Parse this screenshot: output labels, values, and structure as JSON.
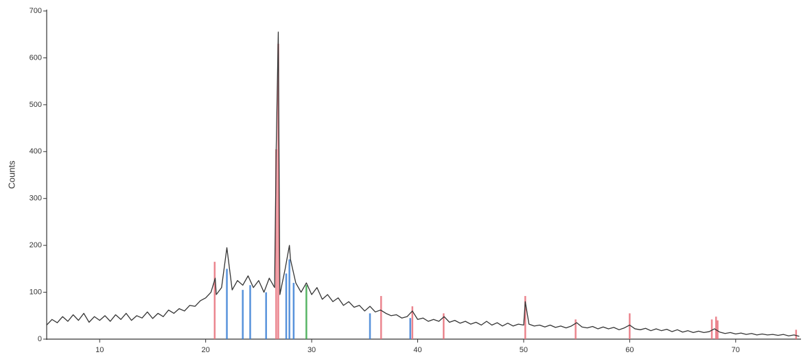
{
  "chart_data": {
    "type": "line",
    "ylabel": "Counts",
    "xlim": [
      5,
      76.1
    ],
    "ylim": [
      0,
      700
    ],
    "xticks": [
      10,
      20,
      30,
      40,
      50,
      60,
      70
    ],
    "yticks": [
      0,
      100,
      200,
      300,
      400,
      500,
      600,
      700
    ],
    "grid": false,
    "series": [
      {
        "type": "stem",
        "color": "#e8707a",
        "x": [
          20.85,
          26.65,
          26.85,
          36.55,
          39.5,
          42.45,
          50.15,
          54.9,
          60.0,
          67.75,
          68.15,
          68.3,
          75.7
        ],
        "values": [
          165,
          405,
          630,
          92,
          70,
          55,
          92,
          42,
          55,
          42,
          48,
          40,
          20
        ]
      },
      {
        "type": "stem",
        "color": "#3a7fd5",
        "x": [
          22.0,
          23.5,
          24.2,
          25.7,
          27.6,
          27.9,
          28.3,
          35.5,
          39.3
        ],
        "values": [
          150,
          105,
          115,
          100,
          140,
          170,
          120,
          55,
          45
        ]
      },
      {
        "type": "stem",
        "color": "#3aa84a",
        "x": [
          29.5
        ],
        "values": [
          115
        ]
      },
      {
        "type": "line",
        "color": "#333333",
        "x": [
          5,
          5.5,
          6,
          6.5,
          7,
          7.5,
          8,
          8.5,
          9,
          9.5,
          10,
          10.5,
          11,
          11.5,
          12,
          12.5,
          13,
          13.5,
          14,
          14.5,
          15,
          15.5,
          16,
          16.5,
          17,
          17.5,
          18,
          18.5,
          19,
          19.5,
          20,
          20.5,
          20.9,
          21,
          21.5,
          22,
          22.5,
          23,
          23.5,
          24,
          24.5,
          25,
          25.5,
          26,
          26.5,
          26.65,
          26.85,
          27,
          27.5,
          27.9,
          28,
          28.5,
          29,
          29.5,
          30,
          30.5,
          31,
          31.5,
          32,
          32.5,
          33,
          33.5,
          34,
          34.5,
          35,
          35.5,
          36,
          36.5,
          37,
          37.5,
          38,
          38.5,
          39,
          39.5,
          40,
          40.5,
          41,
          41.5,
          42,
          42.5,
          43,
          43.5,
          44,
          44.5,
          45,
          45.5,
          46,
          46.5,
          47,
          47.5,
          48,
          48.5,
          49,
          49.5,
          50,
          50.15,
          50.5,
          51,
          51.5,
          52,
          52.5,
          53,
          53.5,
          54,
          54.5,
          55,
          55.5,
          56,
          56.5,
          57,
          57.5,
          58,
          58.5,
          59,
          59.5,
          60,
          60.5,
          61,
          61.5,
          62,
          62.5,
          63,
          63.5,
          64,
          64.5,
          65,
          65.5,
          66,
          66.5,
          67,
          67.5,
          68,
          68.5,
          69,
          69.5,
          70,
          70.5,
          71,
          71.5,
          72,
          72.5,
          73,
          73.5,
          74,
          74.5,
          75,
          75.5,
          76
        ],
        "values": [
          30,
          42,
          35,
          48,
          38,
          52,
          40,
          55,
          36,
          48,
          40,
          50,
          38,
          52,
          42,
          55,
          40,
          50,
          45,
          58,
          44,
          55,
          48,
          62,
          55,
          65,
          60,
          72,
          70,
          82,
          88,
          100,
          130,
          95,
          110,
          195,
          105,
          125,
          115,
          135,
          110,
          125,
          100,
          130,
          110,
          400,
          655,
          95,
          150,
          200,
          170,
          120,
          100,
          120,
          95,
          110,
          85,
          95,
          80,
          88,
          72,
          80,
          68,
          72,
          60,
          70,
          58,
          62,
          55,
          50,
          52,
          45,
          48,
          60,
          42,
          45,
          38,
          42,
          38,
          48,
          36,
          40,
          34,
          38,
          32,
          36,
          30,
          38,
          30,
          35,
          28,
          34,
          28,
          32,
          30,
          80,
          32,
          28,
          30,
          26,
          30,
          25,
          28,
          24,
          28,
          35,
          26,
          24,
          27,
          22,
          26,
          22,
          25,
          20,
          24,
          30,
          22,
          20,
          23,
          18,
          22,
          18,
          21,
          16,
          20,
          15,
          18,
          14,
          17,
          14,
          16,
          22,
          15,
          12,
          14,
          11,
          13,
          10,
          12,
          9,
          11,
          9,
          10,
          8,
          10,
          7,
          9,
          6
        ]
      }
    ]
  }
}
